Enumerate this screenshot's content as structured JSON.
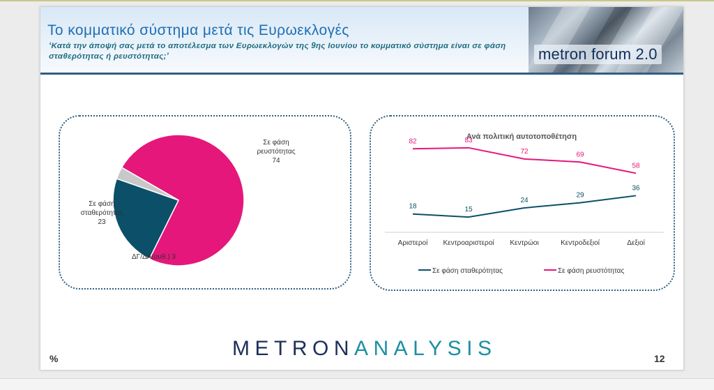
{
  "header": {
    "title": "Το κομματικό σύστημα μετά τις Ευρωεκλογές",
    "subtitle": "‘Κατά την άποψή σας μετά το αποτέλεσμα των Ευρωεκλογών της 9ης Ιουνίου το κομματικό σύστημα είναι σε φάση σταθερότητας ή ρευστότητας;’",
    "brand": "metron forum 2.0"
  },
  "footer": {
    "logo_part1": "METRON",
    "logo_part2": "ANALYSIS",
    "percent": "%",
    "page": "12"
  },
  "colors": {
    "stability": "#0b5068",
    "fluidity": "#e5177b",
    "dk": "#c8c8c8"
  },
  "chart_data": [
    {
      "type": "pie",
      "title": "",
      "slices": [
        {
          "label_lines": [
            "Σε φάση",
            "ρευστότητας"
          ],
          "value": 74
        },
        {
          "label_lines": [
            "Σε φάση",
            "σταθερότητας"
          ],
          "value": 23
        },
        {
          "label_lines": [
            "ΔΓ/ΔΑ(αυθ.)"
          ],
          "value": 3
        }
      ]
    },
    {
      "type": "line",
      "title": "Ανά πολιτική αυτοτοποθέτηση",
      "categories": [
        "Αριστεροί",
        "Κεντροαριστεροί",
        "Κεντρώοι",
        "Κεντροδεξιοί",
        "Δεξιοί"
      ],
      "series": [
        {
          "name": "Σε φάση σταθερότητας",
          "values": [
            18,
            15,
            24,
            29,
            36
          ]
        },
        {
          "name": "Σε φάση ρευστότητας",
          "values": [
            82,
            83,
            72,
            69,
            58
          ]
        }
      ],
      "ylim": [
        0,
        100
      ],
      "legend": "bottom",
      "grid": false
    }
  ]
}
